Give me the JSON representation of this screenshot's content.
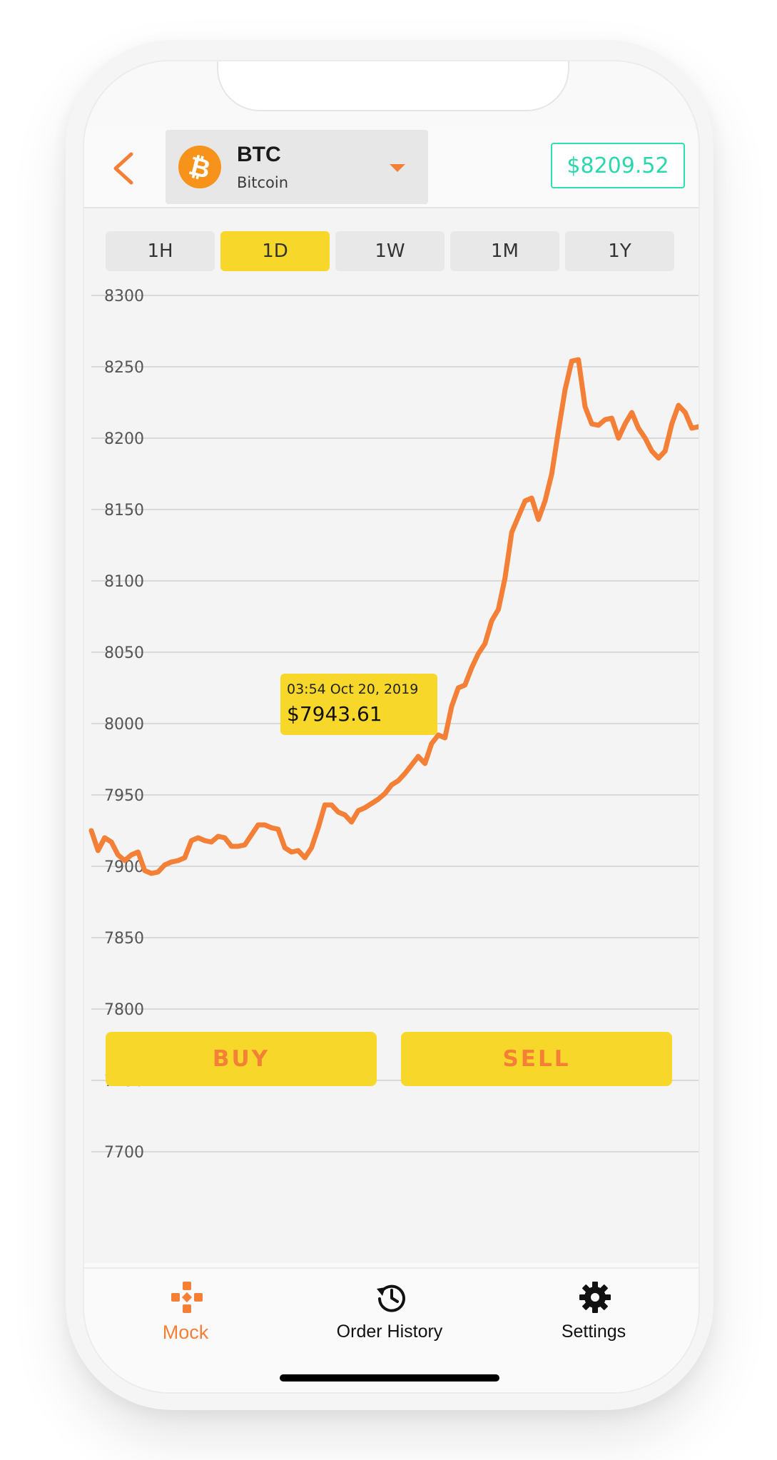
{
  "header": {
    "back_icon": "chevron-left-icon",
    "coin": {
      "symbol": "BTC",
      "name": "Bitcoin",
      "icon": "bitcoin-icon"
    },
    "dropdown_icon": "caret-down-icon",
    "current_price": "$8209.52"
  },
  "timeframes": [
    {
      "label": "1H",
      "active": false
    },
    {
      "label": "1D",
      "active": true
    },
    {
      "label": "1W",
      "active": false
    },
    {
      "label": "1M",
      "active": false
    },
    {
      "label": "1Y",
      "active": false
    }
  ],
  "tooltip": {
    "time": "03:54 Oct 20, 2019",
    "price": "$7943.61"
  },
  "actions": {
    "buy": "BUY",
    "sell": "SELL"
  },
  "nav": [
    {
      "label": "Mock",
      "icon": "gamepad-icon",
      "active": true
    },
    {
      "label": "Order History",
      "icon": "history-icon",
      "active": false
    },
    {
      "label": "Settings",
      "icon": "gear-icon",
      "active": false
    }
  ],
  "colors": {
    "accent": "#f47f36",
    "highlight": "#f7d82a",
    "price": "#2bd7ad"
  },
  "chart_data": {
    "type": "line",
    "title": "",
    "xlabel": "",
    "ylabel": "",
    "ylim": [
      7700,
      8300
    ],
    "yticks": [
      8300,
      8250,
      8200,
      8150,
      8100,
      8050,
      8000,
      7950,
      7900,
      7850,
      7800,
      7750,
      7700
    ],
    "grid": true,
    "series": [
      {
        "values": [
          7925,
          7911,
          7920,
          7917,
          7908,
          7904,
          7908,
          7910,
          7897,
          7895,
          7896,
          7901,
          7903,
          7904,
          7906,
          7918,
          7920,
          7918,
          7917,
          7921,
          7920,
          7914,
          7914,
          7915,
          7922,
          7929,
          7929,
          7927,
          7926,
          7913,
          7910,
          7911,
          7906,
          7913,
          7927,
          7943,
          7943,
          7938,
          7936,
          7931,
          7939,
          7941,
          7944,
          7947,
          7951,
          7957,
          7960,
          7965,
          7971,
          7977,
          7972,
          7986,
          7992,
          7990,
          8012,
          8025,
          8027,
          8039,
          8049,
          8056,
          8072,
          8080,
          8102,
          8134,
          8145,
          8156,
          8158,
          8143,
          8156,
          8175,
          8205,
          8234,
          8254,
          8255,
          8222,
          8210,
          8209,
          8213,
          8214,
          8200,
          8210,
          8218,
          8207,
          8200,
          8191,
          8186,
          8191,
          8210,
          8223,
          8218,
          8207,
          8208
        ]
      }
    ]
  }
}
